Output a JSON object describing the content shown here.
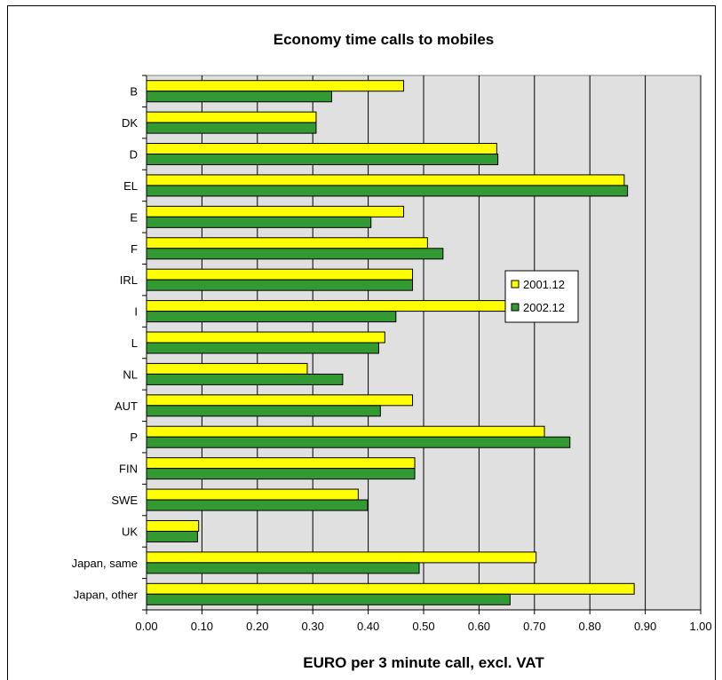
{
  "chart_data": {
    "type": "bar",
    "orientation": "horizontal",
    "title": "Economy time calls to mobiles",
    "xlabel": "EURO per 3 minute call, excl. VAT",
    "ylabel": "",
    "xlim": [
      0,
      1.0
    ],
    "x_ticks": [
      "0.00",
      "0.10",
      "0.20",
      "0.30",
      "0.40",
      "0.50",
      "0.60",
      "0.70",
      "0.80",
      "0.90",
      "1.00"
    ],
    "grid": "vertical",
    "legend_position": "right-center",
    "categories": [
      "B",
      "DK",
      "D",
      "EL",
      "E",
      "F",
      "IRL",
      "I",
      "L",
      "NL",
      "AUT",
      "P",
      "FIN",
      "SWE",
      "UK",
      "Japan, same",
      "Japan, other"
    ],
    "series": [
      {
        "name": "2001.12",
        "color": "#ffff00",
        "values": [
          0.464,
          0.306,
          0.632,
          0.862,
          0.464,
          0.507,
          0.48,
          0.72,
          0.43,
          0.29,
          0.48,
          0.718,
          0.484,
          0.382,
          0.094,
          0.703,
          0.88
        ]
      },
      {
        "name": "2002.12",
        "color": "#339933",
        "values": [
          0.334,
          0.306,
          0.634,
          0.868,
          0.405,
          0.535,
          0.48,
          0.45,
          0.419,
          0.354,
          0.422,
          0.764,
          0.484,
          0.399,
          0.092,
          0.492,
          0.656
        ]
      }
    ]
  }
}
